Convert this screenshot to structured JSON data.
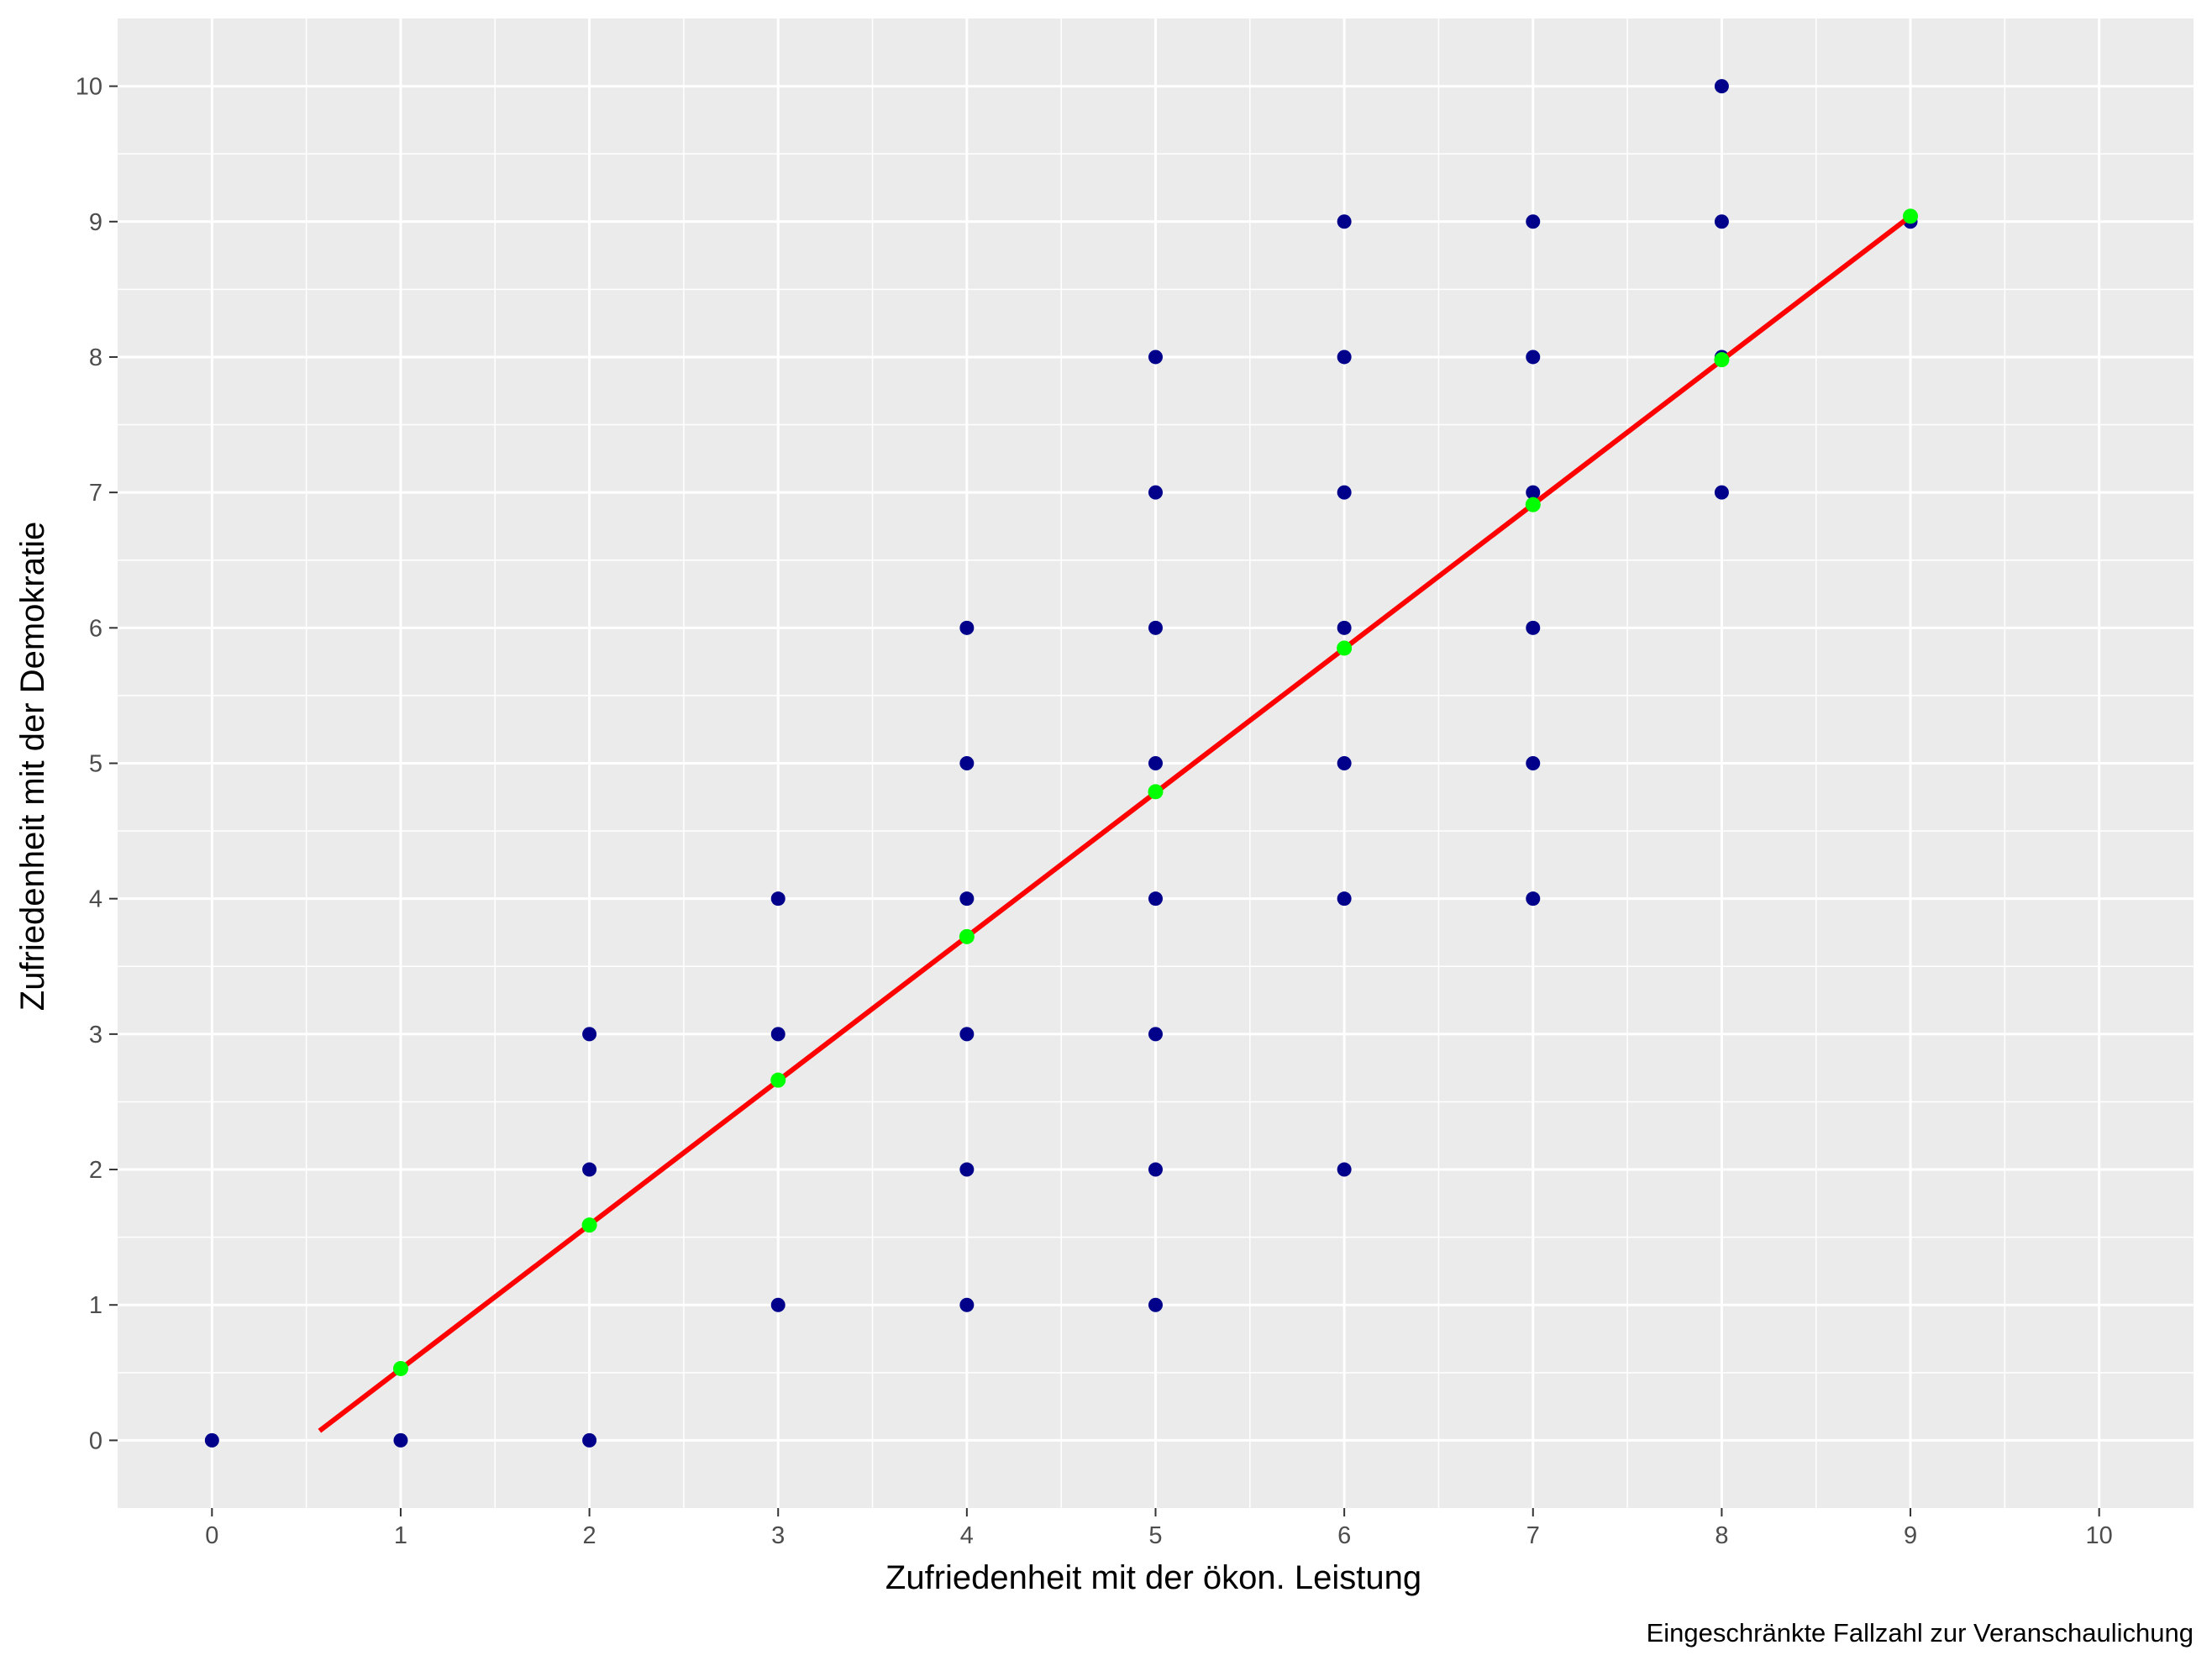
{
  "chart_data": {
    "type": "scatter",
    "title": "",
    "xlabel": "Zufriedenheit mit der ökon. Leistung",
    "ylabel": "Zufriedenheit mit der Demokratie",
    "caption": "Eingeschränkte Fallzahl zur Veranschaulichung",
    "xlim": [
      -0.5,
      10.5
    ],
    "ylim": [
      -0.5,
      10.5
    ],
    "x_ticks": [
      "0",
      "1",
      "2",
      "3",
      "4",
      "5",
      "6",
      "7",
      "8",
      "9",
      "10"
    ],
    "y_ticks": [
      "0",
      "1",
      "2",
      "3",
      "4",
      "5",
      "6",
      "7",
      "8",
      "9",
      "10"
    ],
    "grid": true,
    "colors": {
      "panel_background": "#ebebeb",
      "grid": "#ffffff",
      "points": "#00008b",
      "regression_line": "#ff0000",
      "fitted_points": "#00ff00",
      "tick_text": "#4d4d4d"
    },
    "observations": [
      {
        "x": 0,
        "y": 0
      },
      {
        "x": 1,
        "y": 0
      },
      {
        "x": 2,
        "y": 0
      },
      {
        "x": 2,
        "y": 2
      },
      {
        "x": 2,
        "y": 3
      },
      {
        "x": 3,
        "y": 1
      },
      {
        "x": 3,
        "y": 3
      },
      {
        "x": 3,
        "y": 4
      },
      {
        "x": 4,
        "y": 1
      },
      {
        "x": 4,
        "y": 2
      },
      {
        "x": 4,
        "y": 3
      },
      {
        "x": 4,
        "y": 4
      },
      {
        "x": 4,
        "y": 5
      },
      {
        "x": 4,
        "y": 6
      },
      {
        "x": 5,
        "y": 1
      },
      {
        "x": 5,
        "y": 2
      },
      {
        "x": 5,
        "y": 3
      },
      {
        "x": 5,
        "y": 4
      },
      {
        "x": 5,
        "y": 5
      },
      {
        "x": 5,
        "y": 6
      },
      {
        "x": 5,
        "y": 7
      },
      {
        "x": 5,
        "y": 8
      },
      {
        "x": 6,
        "y": 2
      },
      {
        "x": 6,
        "y": 4
      },
      {
        "x": 6,
        "y": 5
      },
      {
        "x": 6,
        "y": 6
      },
      {
        "x": 6,
        "y": 7
      },
      {
        "x": 6,
        "y": 8
      },
      {
        "x": 6,
        "y": 9
      },
      {
        "x": 7,
        "y": 4
      },
      {
        "x": 7,
        "y": 5
      },
      {
        "x": 7,
        "y": 6
      },
      {
        "x": 7,
        "y": 7
      },
      {
        "x": 7,
        "y": 8
      },
      {
        "x": 7,
        "y": 9
      },
      {
        "x": 8,
        "y": 7
      },
      {
        "x": 8,
        "y": 8
      },
      {
        "x": 8,
        "y": 9
      },
      {
        "x": 8,
        "y": 10
      },
      {
        "x": 9,
        "y": 9
      }
    ],
    "regression_line": {
      "x": [
        0.57,
        9.0
      ],
      "y": [
        0.07,
        9.04
      ]
    },
    "fitted_values": [
      {
        "x": 1,
        "y": 0.53
      },
      {
        "x": 2,
        "y": 1.59
      },
      {
        "x": 3,
        "y": 2.66
      },
      {
        "x": 4,
        "y": 3.72
      },
      {
        "x": 5,
        "y": 4.79
      },
      {
        "x": 6,
        "y": 5.85
      },
      {
        "x": 7,
        "y": 6.91
      },
      {
        "x": 8,
        "y": 7.98
      },
      {
        "x": 9,
        "y": 9.04
      }
    ]
  }
}
